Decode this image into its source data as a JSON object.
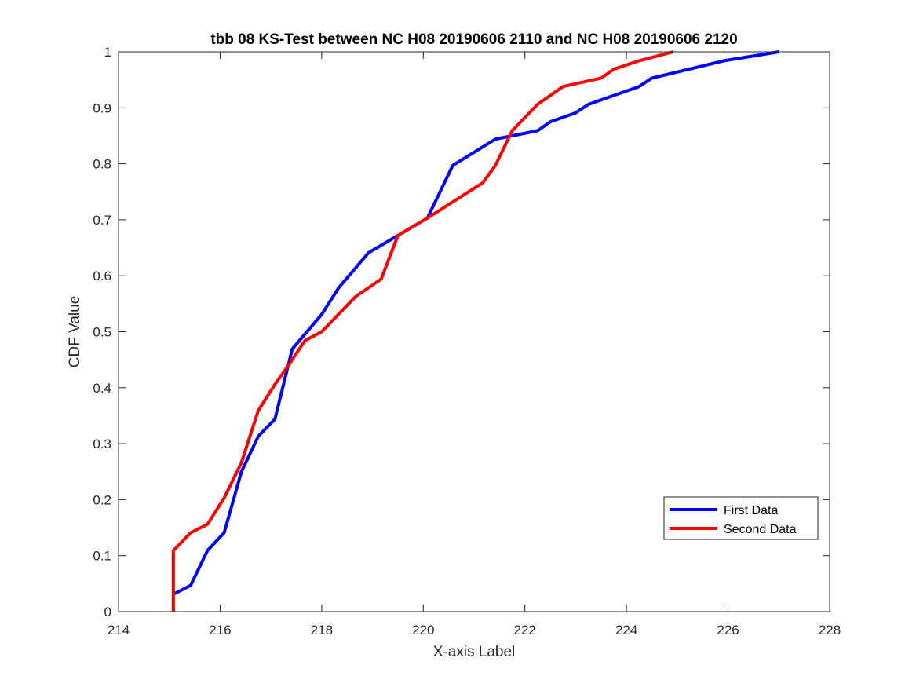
{
  "chart_data": {
    "type": "line",
    "title": "tbb 08 KS-Test between NC H08 20190606 2110 and NC H08 20190606 2120",
    "xlabel": "X-axis Label",
    "ylabel": "CDF Value",
    "xlim": [
      214,
      228
    ],
    "ylim": [
      0,
      1
    ],
    "xticks": [
      "214",
      "216",
      "218",
      "220",
      "222",
      "224",
      "226",
      "228"
    ],
    "yticks": [
      "0",
      "0.1",
      "0.2",
      "0.3",
      "0.4",
      "0.5",
      "0.6",
      "0.7",
      "0.8",
      "0.9",
      "1"
    ],
    "grid": false,
    "legend_position": "bottom-right",
    "series": [
      {
        "name": "First Data",
        "color": "#0000ff",
        "points": [
          [
            215.08,
            0.031
          ],
          [
            215.42,
            0.047
          ],
          [
            215.75,
            0.109
          ],
          [
            216.08,
            0.141
          ],
          [
            216.42,
            0.25
          ],
          [
            216.75,
            0.313
          ],
          [
            217.08,
            0.344
          ],
          [
            217.42,
            0.469
          ],
          [
            218.0,
            0.531
          ],
          [
            218.33,
            0.578
          ],
          [
            218.92,
            0.641
          ],
          [
            219.5,
            0.672
          ],
          [
            220.08,
            0.703
          ],
          [
            220.58,
            0.797
          ],
          [
            221.42,
            0.844
          ],
          [
            222.25,
            0.859
          ],
          [
            222.5,
            0.875
          ],
          [
            223.0,
            0.891
          ],
          [
            223.25,
            0.906
          ],
          [
            224.25,
            0.938
          ],
          [
            224.5,
            0.953
          ],
          [
            225.92,
            0.984
          ],
          [
            227.0,
            1.0
          ]
        ]
      },
      {
        "name": "Second Data",
        "color": "#ff0000",
        "points": [
          [
            215.08,
            0.0
          ],
          [
            215.08,
            0.109
          ],
          [
            215.42,
            0.141
          ],
          [
            215.75,
            0.156
          ],
          [
            216.08,
            0.203
          ],
          [
            216.42,
            0.266
          ],
          [
            216.75,
            0.359
          ],
          [
            217.08,
            0.406
          ],
          [
            217.33,
            0.438
          ],
          [
            217.67,
            0.484
          ],
          [
            218.0,
            0.5
          ],
          [
            218.67,
            0.563
          ],
          [
            219.17,
            0.594
          ],
          [
            219.5,
            0.672
          ],
          [
            220.08,
            0.703
          ],
          [
            221.17,
            0.766
          ],
          [
            221.42,
            0.797
          ],
          [
            221.75,
            0.859
          ],
          [
            222.25,
            0.906
          ],
          [
            222.75,
            0.938
          ],
          [
            223.5,
            0.953
          ],
          [
            223.75,
            0.969
          ],
          [
            224.25,
            0.984
          ],
          [
            224.92,
            1.0
          ]
        ]
      }
    ]
  }
}
